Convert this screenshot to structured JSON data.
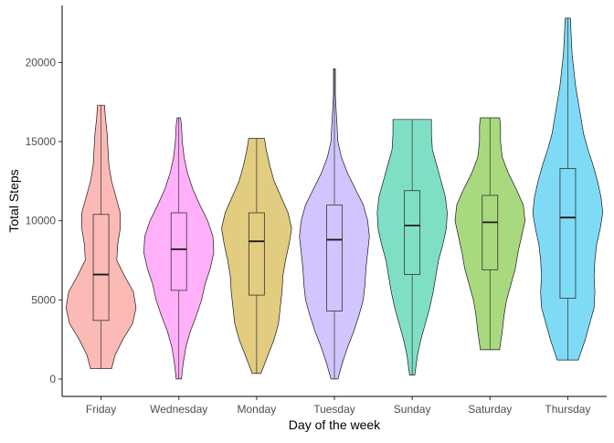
{
  "chart_data": {
    "type": "violin",
    "title": "",
    "xlabel": "Day of the week",
    "ylabel": "Total Steps",
    "ylim": [
      -1100,
      23600
    ],
    "yticks": [
      0,
      5000,
      10000,
      15000,
      20000
    ],
    "ytick_labels": [
      "0",
      "5000",
      "10000",
      "15000",
      "20000"
    ],
    "grid": false,
    "legend": "none",
    "categories": [
      "Friday",
      "Wednesday",
      "Monday",
      "Tuesday",
      "Sunday",
      "Saturday",
      "Thursday"
    ],
    "colors": [
      "#F8766D",
      "#FF61F3",
      "#C49A00",
      "#A58AFF",
      "#00C08B",
      "#53B400",
      "#00B6EB"
    ],
    "series": [
      {
        "category": "Friday",
        "min": 650,
        "q1": 3700,
        "median": 6600,
        "q3": 10400,
        "max": 17300,
        "density": [
          [
            650,
            0.12
          ],
          [
            1500,
            0.16
          ],
          [
            2500,
            0.25
          ],
          [
            3500,
            0.36
          ],
          [
            4500,
            0.4
          ],
          [
            5500,
            0.37
          ],
          [
            6500,
            0.27
          ],
          [
            7500,
            0.18
          ],
          [
            8500,
            0.19
          ],
          [
            9500,
            0.22
          ],
          [
            10500,
            0.22
          ],
          [
            11500,
            0.17
          ],
          [
            12500,
            0.12
          ],
          [
            13500,
            0.09
          ],
          [
            14500,
            0.08
          ],
          [
            15500,
            0.07
          ],
          [
            16500,
            0.05
          ],
          [
            17300,
            0.04
          ]
        ]
      },
      {
        "category": "Wednesday",
        "min": 0,
        "q1": 5600,
        "median": 8200,
        "q3": 10500,
        "max": 16500,
        "density": [
          [
            0,
            0.03
          ],
          [
            1000,
            0.05
          ],
          [
            2000,
            0.08
          ],
          [
            3000,
            0.13
          ],
          [
            4000,
            0.2
          ],
          [
            5000,
            0.26
          ],
          [
            6000,
            0.3
          ],
          [
            7000,
            0.36
          ],
          [
            8000,
            0.4
          ],
          [
            9000,
            0.39
          ],
          [
            10000,
            0.33
          ],
          [
            11000,
            0.24
          ],
          [
            12000,
            0.16
          ],
          [
            13000,
            0.1
          ],
          [
            14000,
            0.06
          ],
          [
            15000,
            0.04
          ],
          [
            16000,
            0.03
          ],
          [
            16500,
            0.02
          ]
        ]
      },
      {
        "category": "Monday",
        "min": 350,
        "q1": 5300,
        "median": 8700,
        "q3": 10500,
        "max": 15200,
        "density": [
          [
            350,
            0.05
          ],
          [
            1500,
            0.13
          ],
          [
            2500,
            0.2
          ],
          [
            3500,
            0.25
          ],
          [
            4500,
            0.27
          ],
          [
            5500,
            0.29
          ],
          [
            6500,
            0.3
          ],
          [
            7500,
            0.33
          ],
          [
            8500,
            0.37
          ],
          [
            9500,
            0.4
          ],
          [
            10500,
            0.36
          ],
          [
            11500,
            0.28
          ],
          [
            12500,
            0.2
          ],
          [
            13500,
            0.15
          ],
          [
            14500,
            0.11
          ],
          [
            15200,
            0.09
          ]
        ]
      },
      {
        "category": "Tuesday",
        "min": 0,
        "q1": 4300,
        "median": 8800,
        "q3": 11000,
        "max": 19600,
        "density": [
          [
            0,
            0.04
          ],
          [
            1000,
            0.09
          ],
          [
            2000,
            0.15
          ],
          [
            3000,
            0.22
          ],
          [
            4000,
            0.28
          ],
          [
            5000,
            0.33
          ],
          [
            6000,
            0.35
          ],
          [
            7000,
            0.36
          ],
          [
            8000,
            0.38
          ],
          [
            9000,
            0.4
          ],
          [
            10000,
            0.38
          ],
          [
            11000,
            0.33
          ],
          [
            12000,
            0.24
          ],
          [
            13000,
            0.15
          ],
          [
            14000,
            0.08
          ],
          [
            15000,
            0.04
          ],
          [
            16000,
            0.03
          ],
          [
            17000,
            0.02
          ],
          [
            18000,
            0.01
          ],
          [
            19000,
            0.01
          ],
          [
            19600,
            0.01
          ]
        ]
      },
      {
        "category": "Sunday",
        "min": 250,
        "q1": 6600,
        "median": 9700,
        "q3": 11900,
        "max": 16400,
        "density": [
          [
            250,
            0.03
          ],
          [
            1500,
            0.06
          ],
          [
            2500,
            0.1
          ],
          [
            3500,
            0.15
          ],
          [
            4500,
            0.2
          ],
          [
            5500,
            0.24
          ],
          [
            6500,
            0.27
          ],
          [
            7500,
            0.3
          ],
          [
            8500,
            0.35
          ],
          [
            9500,
            0.39
          ],
          [
            10500,
            0.4
          ],
          [
            11500,
            0.38
          ],
          [
            12500,
            0.33
          ],
          [
            13500,
            0.28
          ],
          [
            14500,
            0.23
          ],
          [
            15500,
            0.22
          ],
          [
            16400,
            0.22
          ]
        ]
      },
      {
        "category": "Saturday",
        "min": 1850,
        "q1": 6900,
        "median": 9900,
        "q3": 11600,
        "max": 16500,
        "density": [
          [
            1850,
            0.11
          ],
          [
            3000,
            0.14
          ],
          [
            4000,
            0.16
          ],
          [
            5000,
            0.19
          ],
          [
            6000,
            0.24
          ],
          [
            7000,
            0.29
          ],
          [
            8000,
            0.32
          ],
          [
            9000,
            0.36
          ],
          [
            10000,
            0.4
          ],
          [
            11000,
            0.38
          ],
          [
            12000,
            0.3
          ],
          [
            13000,
            0.21
          ],
          [
            14000,
            0.14
          ],
          [
            15000,
            0.12
          ],
          [
            16000,
            0.12
          ],
          [
            16500,
            0.11
          ]
        ]
      },
      {
        "category": "Thursday",
        "min": 1200,
        "q1": 5100,
        "median": 10200,
        "q3": 13300,
        "max": 22800,
        "density": [
          [
            1200,
            0.12
          ],
          [
            2500,
            0.2
          ],
          [
            3500,
            0.25
          ],
          [
            4500,
            0.3
          ],
          [
            5500,
            0.31
          ],
          [
            6500,
            0.3
          ],
          [
            7500,
            0.31
          ],
          [
            8500,
            0.33
          ],
          [
            9500,
            0.37
          ],
          [
            10500,
            0.4
          ],
          [
            11500,
            0.38
          ],
          [
            12500,
            0.34
          ],
          [
            13500,
            0.29
          ],
          [
            14500,
            0.23
          ],
          [
            15500,
            0.18
          ],
          [
            16500,
            0.15
          ],
          [
            17500,
            0.12
          ],
          [
            18500,
            0.09
          ],
          [
            19500,
            0.07
          ],
          [
            20500,
            0.05
          ],
          [
            21500,
            0.04
          ],
          [
            22800,
            0.03
          ]
        ]
      }
    ]
  }
}
